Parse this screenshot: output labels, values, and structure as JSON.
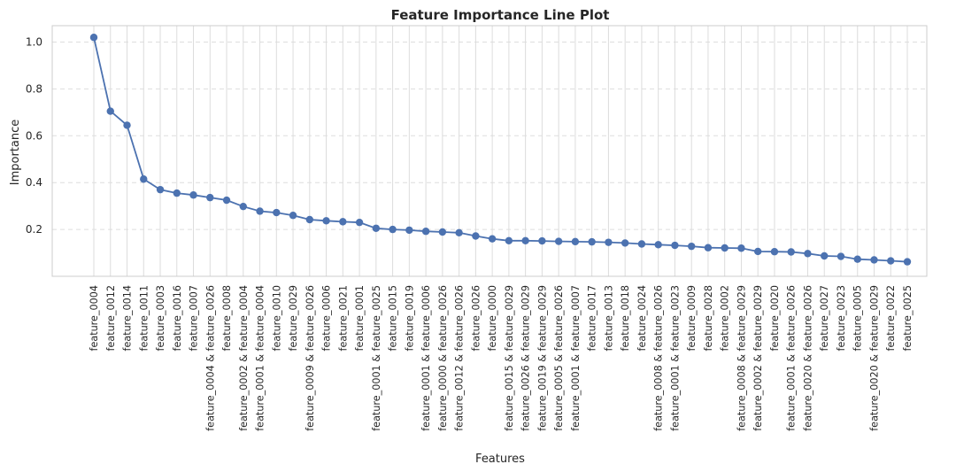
{
  "chart_data": {
    "type": "line",
    "title": "Feature Importance Line Plot",
    "xlabel": "Features",
    "ylabel": "Importance",
    "ylim": [
      0.0,
      1.07
    ],
    "yticks": [
      "0.2",
      "0.4",
      "0.6",
      "0.8",
      "1.0"
    ],
    "grid": true,
    "series_color": "#4c72b0",
    "categories": [
      "feature_0004",
      "feature_0012",
      "feature_0014",
      "feature_0011",
      "feature_0003",
      "feature_0016",
      "feature_0007",
      "feature_0004 & feature_0026",
      "feature_0008",
      "feature_0002 & feature_0004",
      "feature_0001 & feature_0004",
      "feature_0010",
      "feature_0029",
      "feature_0009 & feature_0026",
      "feature_0006",
      "feature_0021",
      "feature_0001",
      "feature_0001 & feature_0025",
      "feature_0015",
      "feature_0019",
      "feature_0001 & feature_0006",
      "feature_0000 & feature_0026",
      "feature_0012 & feature_0026",
      "feature_0026",
      "feature_0000",
      "feature_0015 & feature_0029",
      "feature_0026 & feature_0029",
      "feature_0019 & feature_0029",
      "feature_0005 & feature_0026",
      "feature_0001 & feature_0007",
      "feature_0017",
      "feature_0013",
      "feature_0018",
      "feature_0024",
      "feature_0008 & feature_0026",
      "feature_0001 & feature_0023",
      "feature_0009",
      "feature_0028",
      "feature_0002",
      "feature_0008 & feature_0029",
      "feature_0002 & feature_0029",
      "feature_0020",
      "feature_0001 & feature_0026",
      "feature_0020 & feature_0026",
      "feature_0027",
      "feature_0023",
      "feature_0005",
      "feature_0020 & feature_0029",
      "feature_0022",
      "feature_0025"
    ],
    "values": [
      1.02,
      0.705,
      0.645,
      0.415,
      0.37,
      0.355,
      0.347,
      0.336,
      0.325,
      0.298,
      0.278,
      0.272,
      0.26,
      0.242,
      0.237,
      0.233,
      0.23,
      0.205,
      0.2,
      0.197,
      0.192,
      0.189,
      0.186,
      0.172,
      0.16,
      0.152,
      0.152,
      0.151,
      0.149,
      0.148,
      0.147,
      0.145,
      0.142,
      0.138,
      0.135,
      0.132,
      0.128,
      0.122,
      0.121,
      0.12,
      0.106,
      0.105,
      0.104,
      0.097,
      0.087,
      0.085,
      0.073,
      0.07,
      0.066,
      0.062
    ]
  }
}
